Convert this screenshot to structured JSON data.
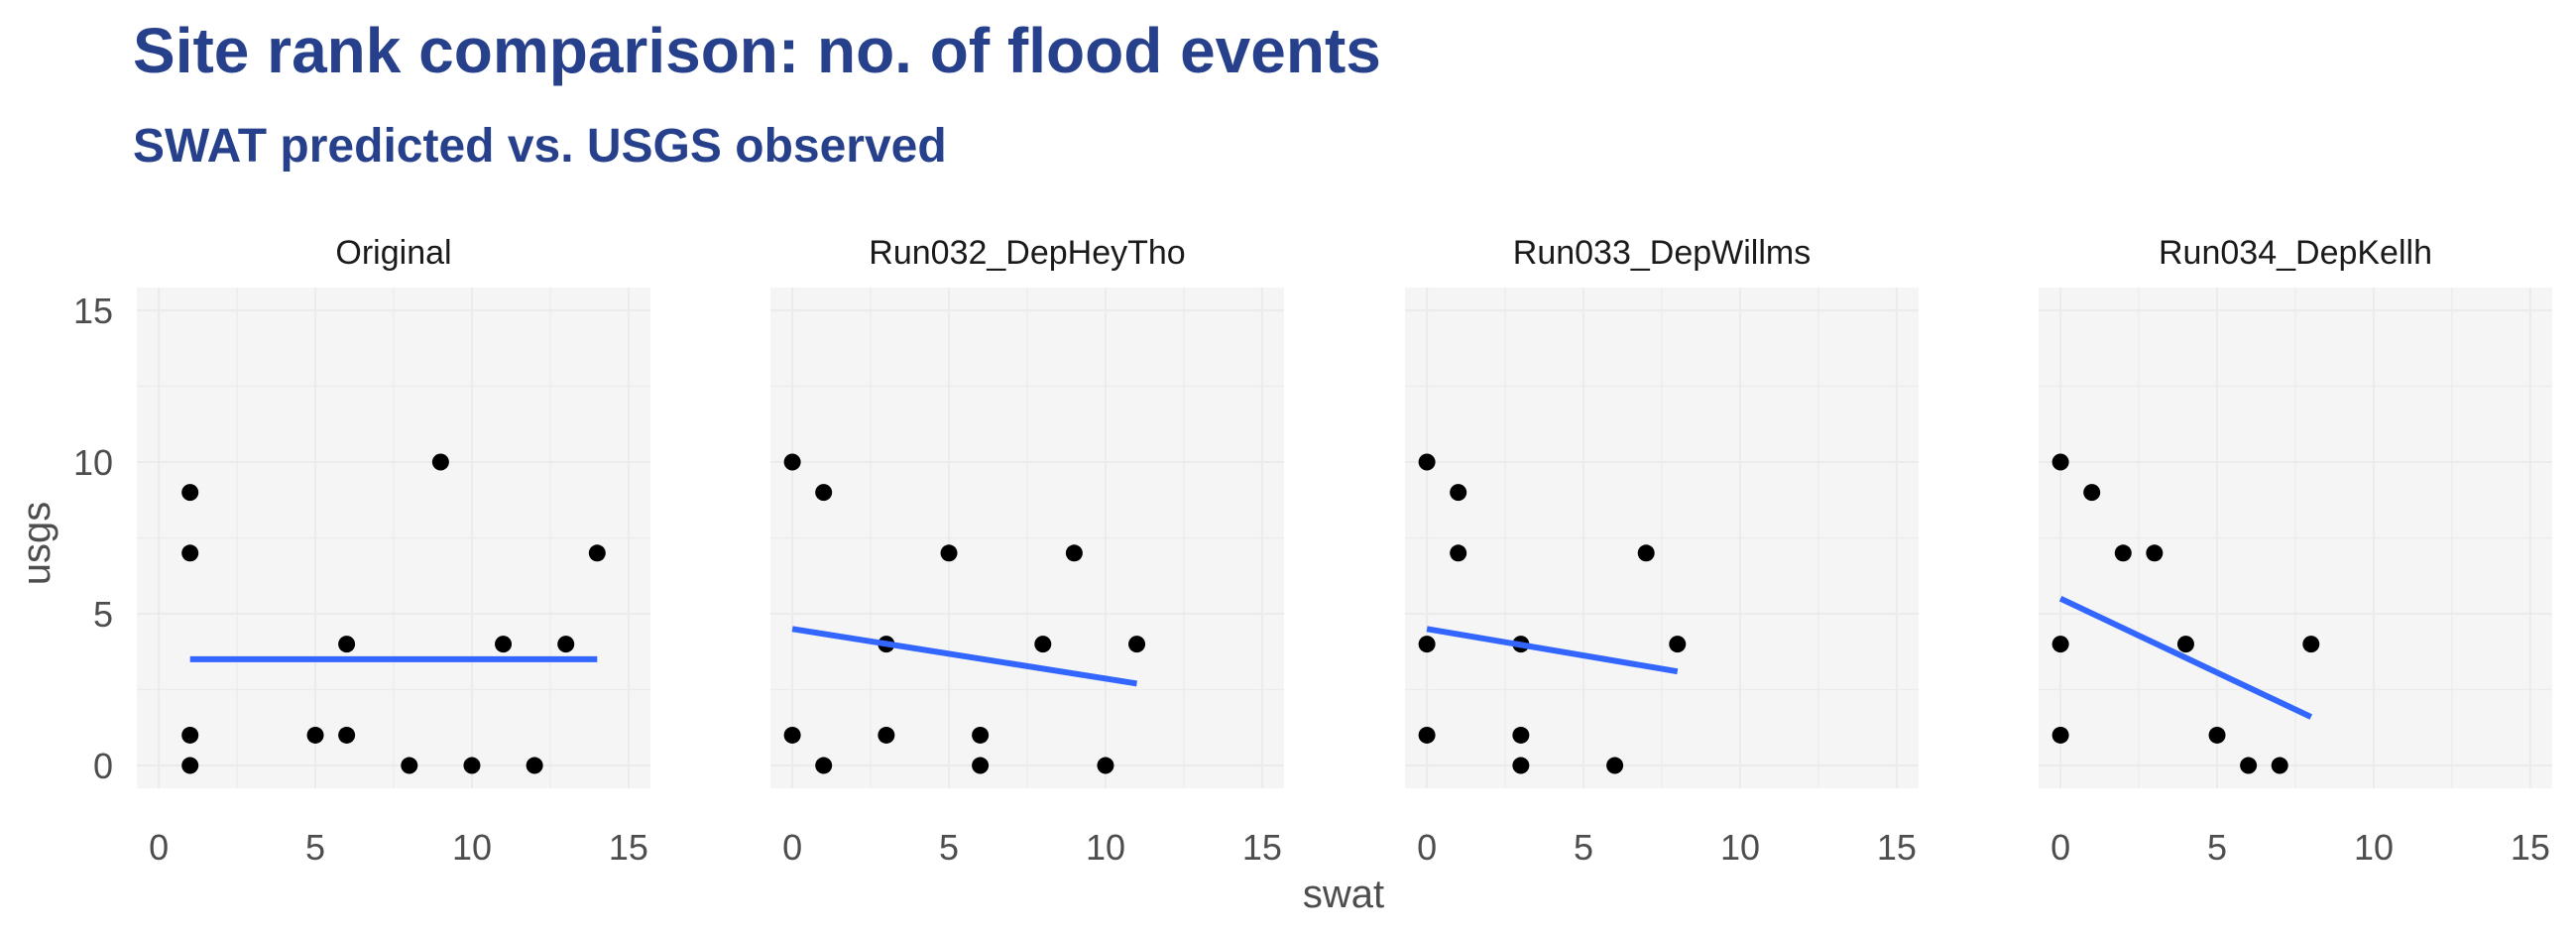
{
  "title": "Site rank comparison: no. of flood events",
  "subtitle": "SWAT predicted vs. USGS observed",
  "chart_data": {
    "type": "scatter",
    "xlabel": "swat",
    "ylabel": "usgs",
    "xlim": [
      -0.7,
      15.7
    ],
    "ylim": [
      -0.75,
      15.75
    ],
    "x_ticks": [
      0,
      5,
      10,
      15
    ],
    "y_ticks": [
      0,
      5,
      10,
      15
    ],
    "grid": true,
    "trend_line": "linear fit per panel",
    "colors": {
      "points": "#000000",
      "fit": "#3366ff",
      "panel_bg": "#f5f5f5",
      "grid": "#ebebeb"
    },
    "panels": [
      {
        "name": "Original",
        "points": [
          [
            1,
            9
          ],
          [
            1,
            7
          ],
          [
            1,
            1
          ],
          [
            1,
            0
          ],
          [
            5,
            1
          ],
          [
            6,
            4
          ],
          [
            6,
            1
          ],
          [
            8,
            0
          ],
          [
            9,
            10
          ],
          [
            10,
            0
          ],
          [
            11,
            4
          ],
          [
            12,
            0
          ],
          [
            13,
            4
          ],
          [
            14,
            7
          ]
        ],
        "fit": [
          [
            1,
            3.5
          ],
          [
            14,
            3.5
          ]
        ]
      },
      {
        "name": "Run032_DepHeyTho",
        "points": [
          [
            0,
            10
          ],
          [
            0,
            1
          ],
          [
            1,
            9
          ],
          [
            1,
            0
          ],
          [
            3,
            4
          ],
          [
            3,
            1
          ],
          [
            5,
            7
          ],
          [
            6,
            1
          ],
          [
            6,
            0
          ],
          [
            8,
            4
          ],
          [
            9,
            7
          ],
          [
            10,
            0
          ],
          [
            11,
            4
          ]
        ],
        "fit": [
          [
            0,
            4.5
          ],
          [
            11,
            2.7
          ]
        ]
      },
      {
        "name": "Run033_DepWillms",
        "points": [
          [
            0,
            10
          ],
          [
            0,
            4
          ],
          [
            0,
            1
          ],
          [
            1,
            9
          ],
          [
            1,
            7
          ],
          [
            3,
            4
          ],
          [
            3,
            1
          ],
          [
            3,
            0
          ],
          [
            6,
            0
          ],
          [
            7,
            7
          ],
          [
            8,
            4
          ]
        ],
        "fit": [
          [
            0,
            4.5
          ],
          [
            8,
            3.1
          ]
        ]
      },
      {
        "name": "Run034_DepKellh",
        "points": [
          [
            0,
            10
          ],
          [
            0,
            4
          ],
          [
            0,
            1
          ],
          [
            1,
            9
          ],
          [
            2,
            7
          ],
          [
            3,
            7
          ],
          [
            4,
            4
          ],
          [
            5,
            1
          ],
          [
            6,
            0
          ],
          [
            7,
            0
          ],
          [
            8,
            4
          ]
        ],
        "fit": [
          [
            0,
            5.5
          ],
          [
            8,
            1.6
          ]
        ]
      }
    ]
  }
}
